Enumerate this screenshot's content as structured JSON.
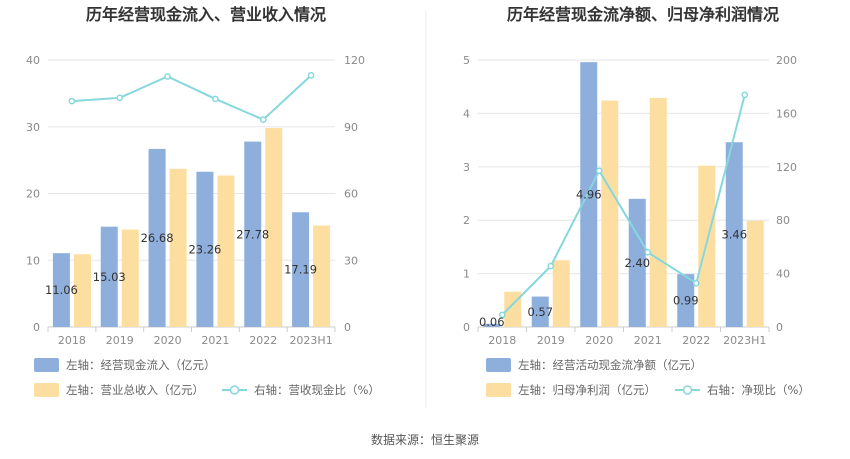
{
  "source_label": "数据来源：恒生聚源",
  "chart_data": [
    {
      "type": "bar",
      "title": "历年经营现金流入、营业收入情况",
      "categories": [
        "2018",
        "2019",
        "2020",
        "2021",
        "2022",
        "2023H1"
      ],
      "y_left": {
        "min": 0,
        "max": 40,
        "ticks": [
          0,
          10,
          20,
          30,
          40
        ]
      },
      "y_right": {
        "min": 0,
        "max": 120,
        "ticks": [
          0,
          30,
          60,
          90,
          120
        ]
      },
      "series": [
        {
          "name": "左轴：经营现金流入（亿元）",
          "type": "bar",
          "axis": "left",
          "color": "#8eaedc",
          "values": [
            11.06,
            15.03,
            26.68,
            23.26,
            27.78,
            17.19
          ],
          "labels": [
            "11.06",
            "15.03",
            "26.68",
            "23.26",
            "27.78",
            "17.19"
          ]
        },
        {
          "name": "左轴：营业总收入（亿元）",
          "type": "bar",
          "axis": "left",
          "color": "#fddea1",
          "values": [
            10.9,
            14.6,
            23.7,
            22.7,
            29.8,
            15.2
          ]
        },
        {
          "name": "右轴：营收现金比（%）",
          "type": "line",
          "axis": "right",
          "color": "#86d8dd",
          "values": [
            101.5,
            103.0,
            112.6,
            102.5,
            93.2,
            113.1
          ]
        }
      ]
    },
    {
      "type": "bar",
      "title": "历年经营现金流净额、归母净利润情况",
      "categories": [
        "2018",
        "2019",
        "2020",
        "2021",
        "2022",
        "2023H1"
      ],
      "y_left": {
        "min": 0,
        "max": 5,
        "ticks": [
          0,
          1,
          2,
          3,
          4,
          5
        ]
      },
      "y_right": {
        "min": 0,
        "max": 200,
        "ticks": [
          0,
          40,
          80,
          120,
          160,
          200
        ]
      },
      "series": [
        {
          "name": "左轴：经营活动现金流净额（亿元）",
          "type": "bar",
          "axis": "left",
          "color": "#8eaedc",
          "values": [
            0.06,
            0.57,
            4.96,
            2.4,
            0.99,
            3.46
          ],
          "labels": [
            "0.06",
            "0.57",
            "4.96",
            "2.40",
            "0.99",
            "3.46"
          ]
        },
        {
          "name": "左轴：归母净利润（亿元）",
          "type": "bar",
          "axis": "left",
          "color": "#fddea1",
          "values": [
            0.66,
            1.25,
            4.24,
            4.29,
            3.02,
            1.99
          ]
        },
        {
          "name": "右轴：净现比（%）",
          "type": "line",
          "axis": "right",
          "color": "#86d8dd",
          "values": [
            9.1,
            45.6,
            117.0,
            56.0,
            32.8,
            173.9
          ]
        }
      ]
    }
  ]
}
